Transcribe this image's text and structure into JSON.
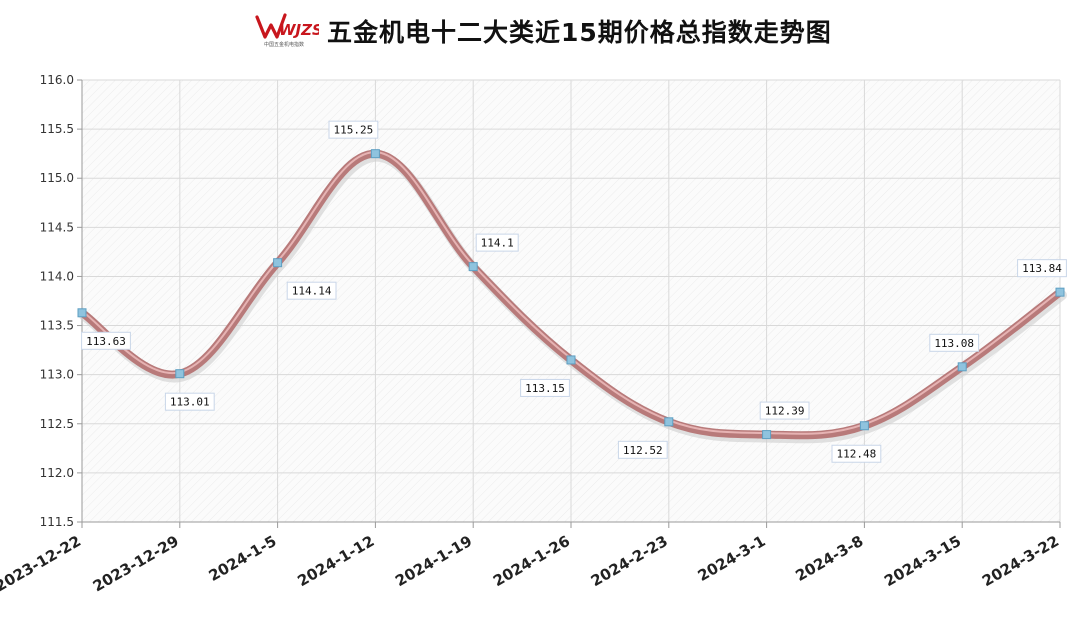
{
  "header": {
    "logo_text": "WJZS",
    "logo_subtext": "中国五金机电指数",
    "title": "五金机电十二大类近15期价格总指数走势图"
  },
  "colors": {
    "line": "#b87a7a",
    "line_highlight": "#e6b3b3",
    "marker": "#8fc3de",
    "grid": "#d9d9d9",
    "axis": "#9a9a9a",
    "logo_red": "#c8161d"
  },
  "chart_data": {
    "type": "line",
    "title": "五金机电十二大类近15期价格总指数走势图",
    "xlabel": "",
    "ylabel": "",
    "categories": [
      "2023-12-22",
      "2023-12-29",
      "2024-1-5",
      "2024-1-12",
      "2024-1-19",
      "2024-1-26",
      "2024-2-23",
      "2024-3-1",
      "2024-3-8",
      "2024-3-15",
      "2024-3-22"
    ],
    "series": [
      {
        "values": [
          113.63,
          113.01,
          114.14,
          115.25,
          114.1,
          113.15,
          112.52,
          112.39,
          112.48,
          113.08,
          113.84
        ],
        "labels": [
          "113.63",
          "113.01",
          "114.14",
          "115.25",
          "114.1",
          "113.15",
          "112.52",
          "112.39",
          "112.48",
          "113.08",
          "113.84"
        ]
      }
    ],
    "ylim": [
      111.5,
      116.0
    ],
    "yticks": [
      "111.5",
      "112.0",
      "112.5",
      "113.0",
      "113.5",
      "114.0",
      "114.5",
      "115.0",
      "115.5",
      "116.0"
    ],
    "grid": true,
    "smooth": true,
    "legend": "none"
  }
}
